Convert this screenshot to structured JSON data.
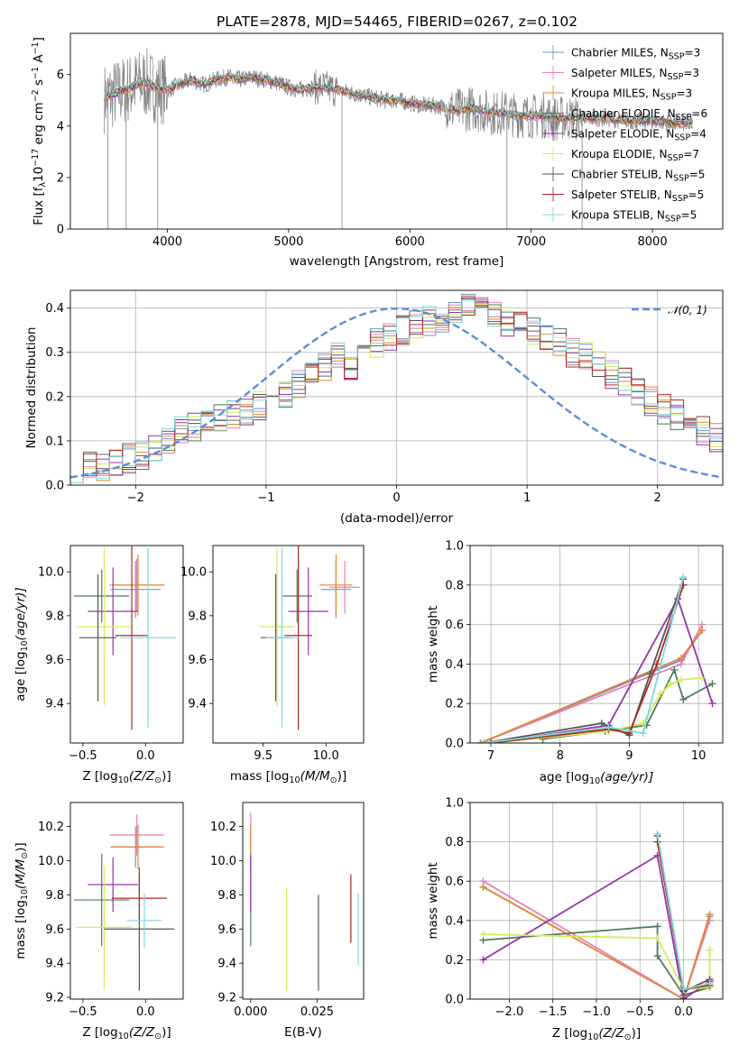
{
  "title": "PLATE=2878, MJD=54465, FIBERID=0267, z=0.102",
  "colors": {
    "Chabrier MILES": "#6f97c9",
    "Salpeter MILES": "#e87fb8",
    "Kroupa MILES": "#e3892f",
    "Chabrier ELODIE": "#4f7a5c",
    "Salpeter ELODIE": "#9633a8",
    "Kroupa ELODIE": "#d4ea59",
    "Chabrier STELIB": "#555555",
    "Salpeter STELIB": "#b02a20",
    "Kroupa STELIB": "#7fd7de",
    "gaussian": "#5b8fd6",
    "data": "#808080"
  },
  "chart_data": [
    {
      "id": "spectrum",
      "type": "line",
      "title": "PLATE=2878, MJD=54465, FIBERID=0267, z=0.102",
      "xlabel": "wavelength [Angstrom, rest frame]",
      "ylabel_parts": [
        "Flux [f",
        "λ",
        "10",
        "−17",
        " erg cm",
        "−2",
        " s",
        "−1",
        " A",
        "−1",
        "]"
      ],
      "xlim": [
        3200,
        8580
      ],
      "ylim": [
        0,
        7.6
      ],
      "xticks": [
        "4000",
        "5000",
        "6000",
        "7000",
        "8000"
      ],
      "xtick_values": [
        4000,
        5000,
        6000,
        7000,
        8000
      ],
      "yticks": [
        "0",
        "2",
        "4",
        "6"
      ],
      "ytick_values": [
        0,
        2,
        4,
        6
      ],
      "grid": false,
      "legend_position": "upper right",
      "legend": [
        {
          "base": "Chabrier MILES, N",
          "sub": "SSP",
          "tail": "=3"
        },
        {
          "base": "Salpeter MILES, N",
          "sub": "SSP",
          "tail": "=3"
        },
        {
          "base": "Kroupa MILES, N",
          "sub": "SSP",
          "tail": "=3"
        },
        {
          "base": "Chabrier ELODIE, N",
          "sub": "SSP",
          "tail": "=6"
        },
        {
          "base": "Salpeter ELODIE, N",
          "sub": "SSP",
          "tail": "=4"
        },
        {
          "base": "Kroupa ELODIE, N",
          "sub": "SSP",
          "tail": "=7"
        },
        {
          "base": "Chabrier STELIB, N",
          "sub": "SSP",
          "tail": "=5"
        },
        {
          "base": "Salpeter STELIB, N",
          "sub": "SSP",
          "tail": "=5"
        },
        {
          "base": "Kroupa STELIB, N",
          "sub": "SSP",
          "tail": "=5"
        }
      ],
      "continuum": {
        "x": [
          3480,
          3600,
          3700,
          3800,
          3900,
          4000,
          4100,
          4200,
          4300,
          4400,
          4500,
          4600,
          4700,
          4800,
          4900,
          5000,
          5100,
          5200,
          5300,
          5400,
          5500,
          5600,
          5700,
          5800,
          5900,
          6000,
          6100,
          6200,
          6300,
          6400,
          6500,
          6600,
          6700,
          6800,
          6900,
          7000,
          7100,
          7200,
          7300,
          7400,
          7600,
          7800,
          8000,
          8200,
          8300
        ],
        "y": [
          5.1,
          5.3,
          5.5,
          5.7,
          5.5,
          5.4,
          5.6,
          5.8,
          5.6,
          5.8,
          5.9,
          5.8,
          5.9,
          5.8,
          5.7,
          5.5,
          5.4,
          5.5,
          5.5,
          5.4,
          5.3,
          5.2,
          5.1,
          5.0,
          5.0,
          4.9,
          4.8,
          4.8,
          4.7,
          4.6,
          4.7,
          4.6,
          4.5,
          4.5,
          4.4,
          4.4,
          4.4,
          4.3,
          4.3,
          4.3,
          4.3,
          4.2,
          4.2,
          4.1,
          4.1
        ]
      }
    },
    {
      "id": "residuals",
      "type": "histogram",
      "xlabel": "(data-model)/error",
      "ylabel": "Normed distribution",
      "xlim": [
        -2.5,
        2.5
      ],
      "ylim": [
        0,
        0.44
      ],
      "xticks": [
        "−2",
        "−1",
        "0",
        "1",
        "2"
      ],
      "xtick_values": [
        -2,
        -1,
        0,
        1,
        2
      ],
      "yticks": [
        "0.0",
        "0.1",
        "0.2",
        "0.3",
        "0.4"
      ],
      "ytick_values": [
        0.0,
        0.1,
        0.2,
        0.3,
        0.4
      ],
      "grid": true,
      "legend": {
        "label_main": "𝒩(0, 1)",
        "position": "upper right"
      },
      "bin_edges_start": -2.5,
      "bin_width": 0.1,
      "base_density": [
        0.02,
        0.04,
        0.045,
        0.05,
        0.06,
        0.07,
        0.08,
        0.1,
        0.12,
        0.13,
        0.14,
        0.15,
        0.16,
        0.17,
        0.18,
        0.2,
        0.21,
        0.23,
        0.25,
        0.27,
        0.29,
        0.27,
        0.31,
        0.32,
        0.34,
        0.35,
        0.36,
        0.37,
        0.38,
        0.39,
        0.4,
        0.39,
        0.38,
        0.37,
        0.36,
        0.35,
        0.33,
        0.32,
        0.3,
        0.29,
        0.27,
        0.25,
        0.23,
        0.21,
        0.19,
        0.17,
        0.16,
        0.14,
        0.12,
        0.11,
        0.09,
        0.08,
        0.07,
        0.06,
        0.05,
        0.04,
        0.035,
        0.03,
        0.03,
        0.02
      ]
    },
    {
      "id": "age-vs-Z",
      "type": "errorbar",
      "xlabel_parts": [
        "Z [log",
        "10",
        "(Z/Z",
        "⊙",
        ")]"
      ],
      "ylabel_parts": [
        "age  [log",
        "10",
        "(age/yr)]"
      ],
      "xlim": [
        -0.6,
        0.3
      ],
      "ylim": [
        9.22,
        10.12
      ],
      "xticks": [
        "−0.5",
        "0.0"
      ],
      "xtick_values": [
        -0.5,
        0.0
      ],
      "yticks": [
        "9.4",
        "9.6",
        "9.8",
        "10.0"
      ],
      "ytick_values": [
        9.4,
        9.6,
        9.8,
        10.0
      ],
      "points": [
        {
          "model": "Chabrier MILES",
          "x": -0.08,
          "xerr": 0.2,
          "y": 9.92,
          "yerr": 0.13
        },
        {
          "model": "Salpeter MILES",
          "x": -0.07,
          "xerr": 0.22,
          "y": 9.94,
          "yerr": 0.12
        },
        {
          "model": "Kroupa MILES",
          "x": -0.06,
          "xerr": 0.21,
          "y": 9.94,
          "yerr": 0.14
        },
        {
          "model": "Chabrier ELODIE",
          "x": -0.35,
          "xerr": 0.22,
          "y": 9.89,
          "yerr": 0.12
        },
        {
          "model": "Salpeter ELODIE",
          "x": -0.26,
          "xerr": 0.2,
          "y": 9.82,
          "yerr": 0.2
        },
        {
          "model": "Kroupa ELODIE",
          "x": -0.33,
          "xerr": 0.22,
          "y": 9.75,
          "yerr": 0.36
        },
        {
          "model": "Chabrier STELIB",
          "x": -0.38,
          "xerr": 0.15,
          "y": 9.7,
          "yerr": 0.29
        },
        {
          "model": "Salpeter STELIB",
          "x": -0.11,
          "xerr": 0.13,
          "y": 9.71,
          "yerr": 0.43
        },
        {
          "model": "Kroupa STELIB",
          "x": 0.02,
          "xerr": 0.22,
          "y": 9.7,
          "yerr": 0.41
        }
      ]
    },
    {
      "id": "age-vs-mass",
      "type": "errorbar",
      "xlabel_parts": [
        "mass [log",
        "10",
        "(M/M",
        "⊙",
        ")]"
      ],
      "xlim": [
        9.1,
        10.3
      ],
      "ylim": [
        9.22,
        10.12
      ],
      "xticks": [
        "9.5",
        "10.0"
      ],
      "xtick_values": [
        9.5,
        10.0
      ],
      "yticks": [
        "9.4",
        "9.6",
        "9.8",
        "10.0"
      ],
      "ytick_values": [
        9.4,
        9.6,
        9.8,
        10.0
      ],
      "points": [
        {
          "model": "Chabrier MILES",
          "x": 10.08,
          "xerr": 0.12,
          "y": 9.92,
          "yerr": 0.13
        },
        {
          "model": "Salpeter MILES",
          "x": 10.15,
          "xerr": 0.12,
          "y": 9.93,
          "yerr": 0.12
        },
        {
          "model": "Kroupa MILES",
          "x": 10.08,
          "xerr": 0.13,
          "y": 9.94,
          "yerr": 0.14
        },
        {
          "model": "Chabrier ELODIE",
          "x": 9.77,
          "xerr": 0.12,
          "y": 9.89,
          "yerr": 0.12
        },
        {
          "model": "Salpeter ELODIE",
          "x": 9.86,
          "xerr": 0.16,
          "y": 9.82,
          "yerr": 0.2
        },
        {
          "model": "Kroupa ELODIE",
          "x": 9.61,
          "xerr": 0.14,
          "y": 9.75,
          "yerr": 0.36
        },
        {
          "model": "Chabrier STELIB",
          "x": 9.6,
          "xerr": 0.12,
          "y": 9.7,
          "yerr": 0.29
        },
        {
          "model": "Salpeter STELIB",
          "x": 9.78,
          "xerr": 0.11,
          "y": 9.71,
          "yerr": 0.43
        },
        {
          "model": "Kroupa STELIB",
          "x": 9.65,
          "xerr": 0.13,
          "y": 9.7,
          "yerr": 0.41
        }
      ]
    },
    {
      "id": "weight-vs-age",
      "type": "line",
      "xlabel_parts": [
        "age  [log",
        "10",
        "(age/yr)]"
      ],
      "ylabel": "mass weight",
      "xlim": [
        6.7,
        10.35
      ],
      "ylim": [
        0,
        1
      ],
      "xticks": [
        "7",
        "8",
        "9",
        "10"
      ],
      "xtick_values": [
        7,
        8,
        9,
        10
      ],
      "yticks": [
        "0.0",
        "0.2",
        "0.4",
        "0.6",
        "0.8",
        "1.0"
      ],
      "ytick_values": [
        0,
        0.2,
        0.4,
        0.6,
        0.8,
        1.0
      ],
      "grid": true,
      "series": [
        {
          "model": "Chabrier MILES",
          "x": [
            6.85,
            9.75,
            10.05
          ],
          "y": [
            0.0,
            0.42,
            0.57
          ]
        },
        {
          "model": "Salpeter MILES",
          "x": [
            6.85,
            9.75,
            10.05
          ],
          "y": [
            0.0,
            0.4,
            0.6
          ]
        },
        {
          "model": "Kroupa MILES",
          "x": [
            6.85,
            9.75,
            10.05
          ],
          "y": [
            0.0,
            0.43,
            0.57
          ]
        },
        {
          "model": "Chabrier ELODIE",
          "x": [
            7.75,
            8.65,
            9.25,
            9.65,
            9.78,
            10.2
          ],
          "y": [
            0.02,
            0.06,
            0.09,
            0.37,
            0.22,
            0.3
          ]
        },
        {
          "model": "Salpeter ELODIE",
          "x": [
            7.0,
            8.7,
            9.7,
            10.2
          ],
          "y": [
            0.0,
            0.09,
            0.73,
            0.2
          ]
        },
        {
          "model": "Kroupa ELODIE",
          "x": [
            7.0,
            8.7,
            9.2,
            9.45,
            9.6,
            9.75,
            10.05
          ],
          "y": [
            0.0,
            0.06,
            0.1,
            0.25,
            0.3,
            0.32,
            0.33
          ]
        },
        {
          "model": "Chabrier STELIB",
          "x": [
            6.9,
            8.6,
            9.0,
            9.3,
            9.78
          ],
          "y": [
            0.0,
            0.1,
            0.04,
            0.35,
            0.83
          ]
        },
        {
          "model": "Salpeter STELIB",
          "x": [
            7.0,
            8.7,
            9.0,
            9.4,
            9.78
          ],
          "y": [
            0.0,
            0.07,
            0.05,
            0.4,
            0.8
          ]
        },
        {
          "model": "Kroupa STELIB",
          "x": [
            6.9,
            8.7,
            9.2,
            9.78
          ],
          "y": [
            0.0,
            0.08,
            0.05,
            0.84
          ]
        }
      ]
    },
    {
      "id": "mass-vs-Z",
      "type": "errorbar",
      "xlabel_parts": [
        "Z [log",
        "10",
        "(Z/Z",
        "⊙",
        ")]"
      ],
      "ylabel_parts": [
        "mass [log",
        "10",
        "(M/M",
        "⊙",
        ")]"
      ],
      "xlim": [
        -0.6,
        0.3
      ],
      "ylim": [
        9.19,
        10.34
      ],
      "xticks": [
        "−0.5",
        "0.0"
      ],
      "xtick_values": [
        -0.5,
        0.0
      ],
      "yticks": [
        "9.2",
        "9.4",
        "9.6",
        "9.8",
        "10.0",
        "10.2"
      ],
      "ytick_values": [
        9.2,
        9.4,
        9.6,
        9.8,
        10.0,
        10.2
      ],
      "points": [
        {
          "model": "Chabrier MILES",
          "x": -0.08,
          "xerr": 0.2,
          "y": 10.08,
          "yerr": 0.12
        },
        {
          "model": "Salpeter MILES",
          "x": -0.07,
          "xerr": 0.22,
          "y": 10.15,
          "yerr": 0.12
        },
        {
          "model": "Kroupa MILES",
          "x": -0.06,
          "xerr": 0.21,
          "y": 10.08,
          "yerr": 0.13
        },
        {
          "model": "Chabrier ELODIE",
          "x": -0.35,
          "xerr": 0.22,
          "y": 9.77,
          "yerr": 0.27
        },
        {
          "model": "Salpeter ELODIE",
          "x": -0.26,
          "xerr": 0.2,
          "y": 9.86,
          "yerr": 0.16
        },
        {
          "model": "Kroupa ELODIE",
          "x": -0.33,
          "xerr": 0.22,
          "y": 9.61,
          "yerr": 0.36
        },
        {
          "model": "Chabrier STELIB",
          "x": -0.05,
          "xerr": 0.28,
          "y": 9.6,
          "yerr": 0.36
        },
        {
          "model": "Salpeter STELIB",
          "x": -0.05,
          "xerr": 0.22,
          "y": 9.78,
          "yerr": 0.14
        },
        {
          "model": "Kroupa STELIB",
          "x": -0.01,
          "xerr": 0.14,
          "y": 9.65,
          "yerr": 0.16
        }
      ]
    },
    {
      "id": "mass-vs-EBV",
      "type": "errorbar",
      "xlabel": "E(B-V)",
      "xlim": [
        -0.003,
        0.0425
      ],
      "ylim": [
        9.19,
        10.34
      ],
      "xticks": [
        "0.000",
        "0.025"
      ],
      "xtick_values": [
        0.0,
        0.025
      ],
      "yticks": [
        "9.2",
        "9.4",
        "9.6",
        "9.8",
        "10.0",
        "10.2"
      ],
      "ytick_values": [
        9.2,
        9.4,
        9.6,
        9.8,
        10.0,
        10.2
      ],
      "points": [
        {
          "model": "Chabrier MILES",
          "x": 0.0,
          "y": 10.08,
          "yerr": 0.12
        },
        {
          "model": "Salpeter MILES",
          "x": 0.0,
          "y": 10.15,
          "yerr": 0.13
        },
        {
          "model": "Kroupa MILES",
          "x": 0.0,
          "y": 10.08,
          "yerr": 0.13
        },
        {
          "model": "Chabrier ELODIE",
          "x": 0.0,
          "y": 9.77,
          "yerr": 0.27
        },
        {
          "model": "Salpeter ELODIE",
          "x": 0.0,
          "y": 9.86,
          "yerr": 0.16
        },
        {
          "model": "Kroupa ELODIE",
          "x": 0.0135,
          "y": 9.54,
          "yerr": 0.3
        },
        {
          "model": "Chabrier STELIB",
          "x": 0.0255,
          "y": 9.52,
          "yerr": 0.28
        },
        {
          "model": "Salpeter STELIB",
          "x": 0.0377,
          "y": 9.72,
          "yerr": 0.2
        },
        {
          "model": "Kroupa STELIB",
          "x": 0.0405,
          "y": 9.6,
          "yerr": 0.21
        }
      ]
    },
    {
      "id": "weight-vs-Z",
      "type": "line",
      "xlabel_parts": [
        "Z [log",
        "10",
        "(Z/Z",
        "⊙",
        ")]"
      ],
      "ylabel": "mass weight",
      "xlim": [
        -2.45,
        0.45
      ],
      "ylim": [
        0,
        1
      ],
      "xticks": [
        "−2.0",
        "−1.5",
        "−1.0",
        "−0.5",
        "0.0"
      ],
      "xtick_values": [
        -2.0,
        -1.5,
        -1.0,
        -0.5,
        0.0
      ],
      "yticks": [
        "0.0",
        "0.2",
        "0.4",
        "0.6",
        "0.8",
        "1.0"
      ],
      "ytick_values": [
        0,
        0.2,
        0.4,
        0.6,
        0.8,
        1.0
      ],
      "grid": true,
      "series": [
        {
          "model": "Chabrier MILES",
          "x": [
            -2.3,
            0.0,
            0.3
          ],
          "y": [
            0.57,
            0.0,
            0.42
          ]
        },
        {
          "model": "Salpeter MILES",
          "x": [
            -2.3,
            0.0,
            0.3
          ],
          "y": [
            0.6,
            0.0,
            0.4
          ]
        },
        {
          "model": "Kroupa MILES",
          "x": [
            -2.3,
            0.0,
            0.3
          ],
          "y": [
            0.57,
            0.0,
            0.43
          ]
        },
        {
          "model": "Chabrier ELODIE",
          "x": [
            -2.3,
            -0.3,
            -0.3,
            0.0,
            0.3,
            0.3
          ],
          "y": [
            0.3,
            0.37,
            0.22,
            0.02,
            0.06,
            0.1
          ]
        },
        {
          "model": "Salpeter ELODIE",
          "x": [
            -2.3,
            -0.3,
            0.0,
            0.3
          ],
          "y": [
            0.2,
            0.73,
            0.0,
            0.09
          ]
        },
        {
          "model": "Kroupa ELODIE",
          "x": [
            -2.3,
            -0.3,
            0.0,
            0.3,
            0.3
          ],
          "y": [
            0.33,
            0.31,
            0.05,
            0.06,
            0.25
          ]
        },
        {
          "model": "Chabrier STELIB",
          "x": [
            -0.3,
            0.0,
            0.3
          ],
          "y": [
            0.83,
            0.04,
            0.1
          ]
        },
        {
          "model": "Salpeter STELIB",
          "x": [
            -0.3,
            0.0,
            0.3
          ],
          "y": [
            0.8,
            0.05,
            0.07
          ]
        },
        {
          "model": "Kroupa STELIB",
          "x": [
            -0.3,
            0.0,
            0.3
          ],
          "y": [
            0.84,
            0.05,
            0.08
          ]
        }
      ]
    }
  ]
}
